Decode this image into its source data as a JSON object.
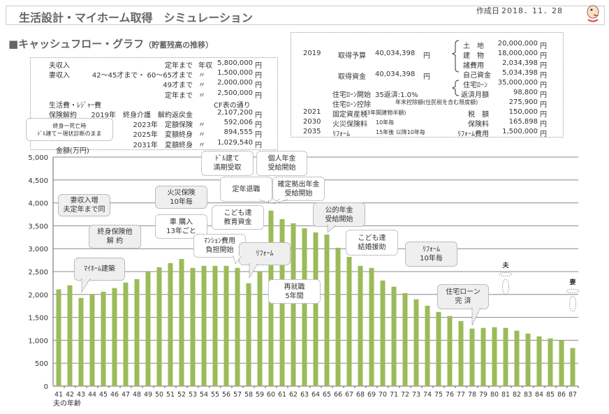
{
  "header": {
    "title": "生活設計・マイホーム取得　シミュレーション",
    "date_label": "作成日",
    "date": "2018．11．28"
  },
  "section": {
    "title": "■キャッシュフロー・グラフ",
    "subtitle": "（貯蓄残高の推移）"
  },
  "left_info": {
    "rows": [
      {
        "label": "夫収入",
        "desc": "定年まで",
        "mark": "年収",
        "amount": "5,800,000",
        "unit": "円"
      },
      {
        "label": "妻収入",
        "desc": "42～45才まで・ 60～65才まで",
        "mark": "〃",
        "amount": "1,500,000",
        "unit": "円"
      },
      {
        "label": "",
        "desc": "49才まで",
        "mark": "〃",
        "amount": "2,000,000",
        "unit": "円"
      },
      {
        "label": "",
        "desc": "定年まで",
        "mark": "〃",
        "amount": "2,500,000",
        "unit": "円"
      },
      {
        "label": "生活費・ﾚｼﾞｬｰ費",
        "desc": "",
        "mark": "",
        "amount": "CF表の通り",
        "unit": ""
      },
      {
        "label": "保険解約",
        "desc": "2019年　終身介護　解約返戻金",
        "mark": "",
        "amount": "2,107,200",
        "unit": "円"
      },
      {
        "label": "",
        "desc": "2023年　定額保険",
        "mark": "〃",
        "amount": "592,006",
        "unit": "円"
      },
      {
        "label": "",
        "desc": "2025年　変額終身",
        "mark": "〃",
        "amount": "894,555",
        "unit": "円"
      },
      {
        "label": "",
        "desc": "2031年　変額終身",
        "mark": "〃",
        "amount": "1,029,540",
        "unit": "円"
      }
    ],
    "note": [
      "終身ー死亡時",
      "ﾄﾞﾙ建てー現状診断のまま"
    ]
  },
  "right_info": {
    "budget": {
      "year": "2019",
      "label": "取得予算",
      "amount": "40,034,398",
      "unit": "円"
    },
    "budget_items": [
      {
        "label": "土　地",
        "amount": "20,000,000",
        "unit": "円"
      },
      {
        "label": "建　物",
        "amount": "18,000,000",
        "unit": "円"
      },
      {
        "label": "諸費用",
        "amount": "2,034,398",
        "unit": "円"
      }
    ],
    "funds": {
      "label": "取得資金",
      "amount": "40,034,398",
      "unit": "円"
    },
    "fund_items": [
      {
        "label": "自己資金",
        "amount": "5,034,398",
        "unit": "円"
      },
      {
        "label": "住宅ﾛｰﾝ",
        "amount": "35,000,000",
        "unit": "円"
      }
    ],
    "rows": [
      {
        "year": "",
        "label": "住宅ﾛｰﾝ開始",
        "note": "35返済:1.0%",
        "item": "返済月額",
        "amount": "98,800",
        "unit": "円"
      },
      {
        "year": "",
        "label": "住宅ﾛｰﾝ控除",
        "note": "年末控除額(住民税を含む限度額)",
        "item": "",
        "amount": "275,900",
        "unit": "円"
      },
      {
        "year": "2021",
        "label": "固定資産税",
        "note": "(3年間建物半額)",
        "item": "税　額",
        "amount": "150,000",
        "unit": "円"
      },
      {
        "year": "2030",
        "label": "火災保険料",
        "note": "10年毎",
        "item": "保険料",
        "amount": "165,898",
        "unit": "円"
      },
      {
        "year": "2035",
        "label": "ﾘﾌｫｰﾑ",
        "note": "15年後 以降10年毎",
        "item": "ﾘﾌｫｰﾑ費用",
        "amount": "1,500,000",
        "unit": "円"
      }
    ]
  },
  "callouts": [
    {
      "id": "wife-income",
      "lines": [
        "妻収入増",
        "夫定年まで同"
      ]
    },
    {
      "id": "insurance-cancel",
      "lines": [
        "終身保険他",
        "解 約"
      ]
    },
    {
      "id": "home-build",
      "lines": [
        "ﾏｲﾎｰﾑ建築"
      ]
    },
    {
      "id": "fire-insurance",
      "lines": [
        "火災保険",
        "10年毎"
      ]
    },
    {
      "id": "car",
      "lines": [
        "車 購入",
        "13年ごと"
      ]
    },
    {
      "id": "condo-fee",
      "lines": [
        "ﾏﾝｼｮﾝ費用",
        "負担開始"
      ]
    },
    {
      "id": "education",
      "lines": [
        "こども達",
        "教育資金"
      ]
    },
    {
      "id": "dollar",
      "lines": [
        "ﾄﾞﾙ建て",
        "満期受取"
      ]
    },
    {
      "id": "retire",
      "lines": [
        "定年退職"
      ]
    },
    {
      "id": "personal-pension",
      "lines": [
        "個人年金",
        "受給開始"
      ]
    },
    {
      "id": "dc-pension",
      "lines": [
        "確定拠出年金",
        "受給開始"
      ]
    },
    {
      "id": "reform",
      "lines": [
        "ﾘﾌｫｰﾑ"
      ]
    },
    {
      "id": "reemploy",
      "lines": [
        "再就職",
        "5年間"
      ]
    },
    {
      "id": "public-pension",
      "lines": [
        "公的年金",
        "受給開始"
      ]
    },
    {
      "id": "wedding",
      "lines": [
        "こども達",
        "結婚援助"
      ]
    },
    {
      "id": "reform-10",
      "lines": [
        "ﾘﾌｫｰﾑ",
        "10年毎"
      ]
    },
    {
      "id": "loan-done",
      "lines": [
        "住宅ローン",
        "完 済"
      ]
    }
  ],
  "markers": {
    "husband": "夫",
    "wife": "妻"
  },
  "colors": {
    "bar": "#9bbb59",
    "grid": "#888888",
    "title": "#666666"
  },
  "chart_data": {
    "type": "bar",
    "title": "",
    "ylabel": "金額(万円)",
    "xlabel": "夫の年齢",
    "ylim": [
      0,
      5000
    ],
    "yticks": [
      "0",
      "500",
      "1,000",
      "1,500",
      "2,000",
      "2,500",
      "3,000",
      "3,500",
      "4,000",
      "4,500",
      "5,000"
    ],
    "categories": [
      "41",
      "42",
      "43",
      "44",
      "45",
      "46",
      "47",
      "48",
      "49",
      "50",
      "51",
      "52",
      "53",
      "54",
      "55",
      "56",
      "57",
      "58",
      "59",
      "60",
      "61",
      "62",
      "63",
      "64",
      "65",
      "66",
      "67",
      "68",
      "69",
      "70",
      "71",
      "72",
      "73",
      "74",
      "75",
      "76",
      "77",
      "78",
      "79",
      "80",
      "81",
      "82",
      "83",
      "84",
      "85",
      "86",
      "87"
    ],
    "values": [
      2110,
      2200,
      1925,
      2000,
      2060,
      2140,
      2260,
      2335,
      2500,
      2595,
      2685,
      2775,
      2580,
      2625,
      2625,
      2625,
      2580,
      2245,
      2500,
      3830,
      3645,
      3555,
      3445,
      3355,
      3310,
      3020,
      2820,
      2625,
      2580,
      2305,
      2170,
      2030,
      1895,
      1755,
      1620,
      1530,
      1420,
      1255,
      1270,
      1285,
      1270,
      1210,
      1145,
      1085,
      1040,
      995,
      830
    ]
  }
}
